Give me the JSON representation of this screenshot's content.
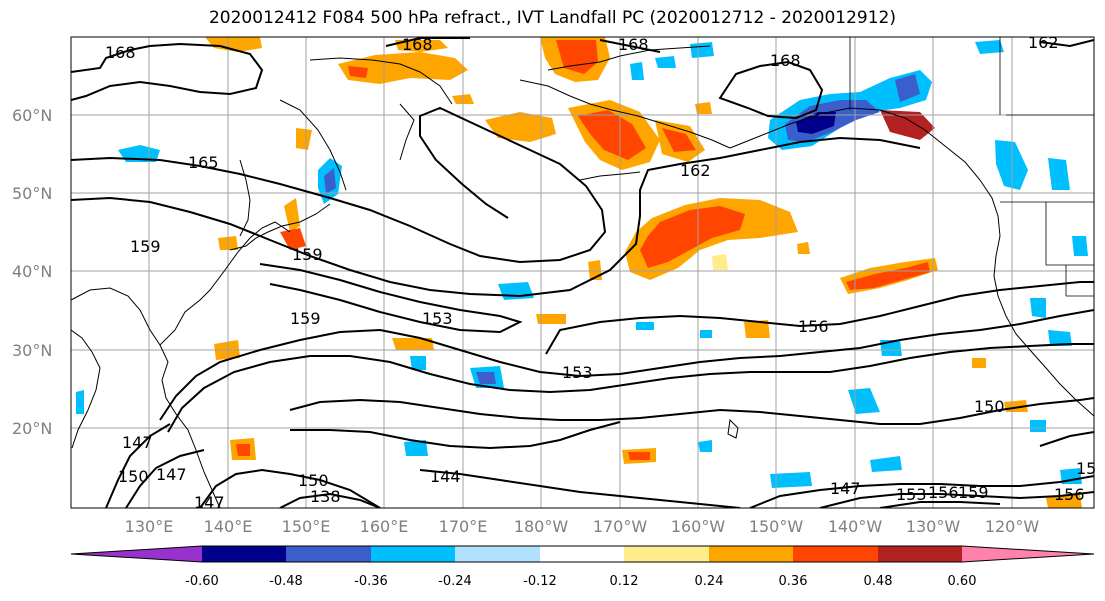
{
  "title": "2020012412 F084 500 hPa refract., IVT Landfall PC (2020012712 - 2020012912)",
  "lat_labels": [
    "60°N",
    "50°N",
    "40°N",
    "30°N",
    "20°N"
  ],
  "lon_labels": [
    "130°E",
    "140°E",
    "150°E",
    "160°E",
    "170°E",
    "180°W",
    "170°W",
    "160°W",
    "150°W",
    "140°W",
    "130°W",
    "120°W"
  ],
  "colorbar": {
    "colors": [
      "#9932cc",
      "#00008b",
      "#3a5fcd",
      "#00bfff",
      "#b0e2ff",
      "#ffffff",
      "#ffec8b",
      "#ffa500",
      "#ff4500",
      "#b22222",
      "#ff82ab"
    ],
    "tick_labels": [
      "-0.60",
      "-0.48",
      "-0.36",
      "-0.24",
      "-0.12",
      "0.12",
      "0.24",
      "0.36",
      "0.48",
      "0.60"
    ]
  },
  "contour_labels": [
    "168",
    "168",
    "168",
    "168",
    "162",
    "165",
    "162",
    "159",
    "159",
    "159",
    "153",
    "156",
    "153",
    "150",
    "147",
    "150",
    "147",
    "147",
    "144",
    "150",
    "138",
    "147",
    "153",
    "156",
    "159",
    "156",
    "15"
  ]
}
